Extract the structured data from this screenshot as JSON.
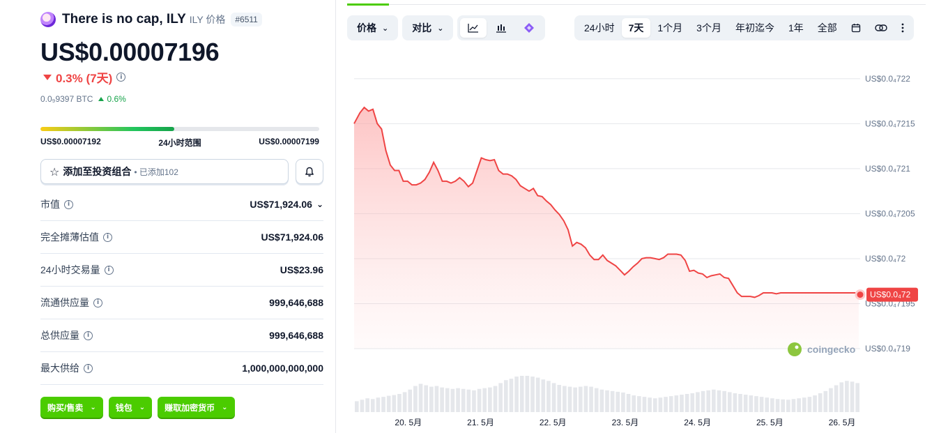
{
  "coin": {
    "name": "There is no cap, ILY",
    "symbol_label": "ILY 价格",
    "rank": "#6511",
    "price": "US$0.00007196",
    "change_7d": "0.3% (7天)",
    "btc_price": "0.0₉9397 BTC",
    "btc_change": "0.6%"
  },
  "range_24h": {
    "low": "US$0.00007192",
    "label": "24小时范围",
    "high": "US$0.00007199",
    "position": 0.48
  },
  "portfolio": {
    "label": "添加至投资组合",
    "added": "• 已添加102"
  },
  "stats": [
    {
      "label": "市值",
      "value": "US$71,924.06"
    },
    {
      "label": "完全摊薄估值",
      "value": "US$71,924.06"
    },
    {
      "label": "24小时交易量",
      "value": "US$23.96"
    },
    {
      "label": "流通供应量",
      "value": "999,646,688"
    },
    {
      "label": "总供应量",
      "value": "999,646,688"
    },
    {
      "label": "最大供给",
      "value": "1,000,000,000,000"
    }
  ],
  "actions": {
    "buy_sell": "购买/售卖",
    "wallet": "钱包",
    "earn": "赚取加密货币"
  },
  "toolbar": {
    "price_tab": "价格",
    "compare_tab": "对比",
    "chart_icons": [
      "line-chart-icon",
      "candlestick-icon",
      "tradingview-icon"
    ]
  },
  "time_ranges": {
    "items": [
      "24小时",
      "7天",
      "1个月",
      "3个月",
      "年初迄今",
      "1年",
      "全部"
    ],
    "active": "7天",
    "icons": [
      "calendar-icon",
      "link-icon",
      "more-icon"
    ]
  },
  "colors": {
    "line": "#ef4444",
    "area": "#fecaca",
    "accent_green": "#4bcc00"
  },
  "chart_data": {
    "type": "area",
    "y_tick_labels": [
      "US$0.0₄722",
      "US$0.0₄7215",
      "US$0.0₄721",
      "US$0.0₄7205",
      "US$0.0₄72",
      "US$0.0₄7195",
      "US$0.0₄719"
    ],
    "y_ticks": [
      7.22e-05,
      7.215e-05,
      7.21e-05,
      7.205e-05,
      7.2e-05,
      7.195e-05,
      7.19e-05
    ],
    "ylim": [
      7.19e-05,
      7.222e-05
    ],
    "x_tick_labels": [
      "20. 5月",
      "21. 5月",
      "22. 5月",
      "23. 5月",
      "24. 5月",
      "25. 5月",
      "26. 5月"
    ],
    "x_ticks": [
      0.75,
      1.75,
      2.75,
      3.75,
      4.75,
      5.75,
      6.75
    ],
    "xlim": [
      0,
      7
    ],
    "current_label": "US$0.0₄72",
    "current_value": 7.196e-05,
    "watermark": "coingecko",
    "grid": true,
    "series": [
      {
        "x": [
          0.0,
          0.08,
          0.14,
          0.2,
          0.26,
          0.32,
          0.38,
          0.44,
          0.5,
          0.56,
          0.62,
          0.68,
          0.74,
          0.8,
          0.86,
          0.92,
          0.98,
          1.04,
          1.1,
          1.16,
          1.22,
          1.28,
          1.34,
          1.4,
          1.46,
          1.52,
          1.58,
          1.64,
          1.7,
          1.76,
          1.82,
          1.88,
          1.94,
          2.0,
          2.06,
          2.12,
          2.18,
          2.24,
          2.3,
          2.36,
          2.42,
          2.48,
          2.54,
          2.6,
          2.66,
          2.72,
          2.78,
          2.84,
          2.9,
          2.96,
          3.02,
          3.08,
          3.14,
          3.2,
          3.26,
          3.32,
          3.38,
          3.44,
          3.5,
          3.56,
          3.62,
          3.68,
          3.74,
          3.8,
          3.86,
          3.92,
          3.98,
          4.04,
          4.1,
          4.16,
          4.22,
          4.28,
          4.34,
          4.4,
          4.46,
          4.52,
          4.58,
          4.64,
          4.7,
          4.76,
          4.82,
          4.88,
          4.94,
          5.0,
          5.06,
          5.12,
          5.18,
          5.24,
          5.3,
          5.36,
          5.42,
          5.48,
          5.54,
          5.6,
          5.66,
          5.72,
          5.78,
          5.84,
          5.9,
          5.96,
          6.02,
          6.08,
          6.14,
          6.2,
          6.26,
          6.32,
          6.38,
          6.44,
          6.5,
          6.56,
          6.62,
          6.68,
          6.74,
          6.8,
          6.86,
          6.92,
          6.98
        ],
        "values": [
          7.215e-05,
          7.2162e-05,
          7.2168e-05,
          7.2164e-05,
          7.2166e-05,
          7.215e-05,
          7.2144e-05,
          7.212e-05,
          7.2104e-05,
          7.2098e-05,
          7.2098e-05,
          7.2086e-05,
          7.2086e-05,
          7.2082e-05,
          7.2082e-05,
          7.2084e-05,
          7.2088e-05,
          7.2096e-05,
          7.2107e-05,
          7.2098e-05,
          7.2086e-05,
          7.2086e-05,
          7.2084e-05,
          7.2086e-05,
          7.209e-05,
          7.2086e-05,
          7.208e-05,
          7.2084e-05,
          7.2098e-05,
          7.2112e-05,
          7.211e-05,
          7.2109e-05,
          7.211e-05,
          7.2098e-05,
          7.2094e-05,
          7.2094e-05,
          7.2092e-05,
          7.2088e-05,
          7.2081e-05,
          7.2078e-05,
          7.2075e-05,
          7.2078e-05,
          7.207e-05,
          7.2069e-05,
          7.2064e-05,
          7.206e-05,
          7.2054e-05,
          7.2049e-05,
          7.2042e-05,
          7.2032e-05,
          7.2014e-05,
          7.2018e-05,
          7.2016e-05,
          7.2012e-05,
          7.2004e-05,
          7.1999e-05,
          7.1999e-05,
          7.2004e-05,
          7.1998e-05,
          7.1995e-05,
          7.1992e-05,
          7.1987e-05,
          7.1982e-05,
          7.1986e-05,
          7.1991e-05,
          7.1995e-05,
          7.2e-05,
          7.2001e-05,
          7.2001e-05,
          7.2e-05,
          7.1999e-05,
          7.2001e-05,
          7.2005e-05,
          7.2005e-05,
          7.2005e-05,
          7.2004e-05,
          7.1998e-05,
          7.1986e-05,
          7.1987e-05,
          7.1984e-05,
          7.1983e-05,
          7.1979e-05,
          7.1981e-05,
          7.1982e-05,
          7.1983e-05,
          7.1979e-05,
          7.1978e-05,
          7.197e-05,
          7.1962e-05,
          7.1958e-05,
          7.1958e-05,
          7.1958e-05,
          7.1957e-05,
          7.1959e-05,
          7.1962e-05,
          7.1962e-05,
          7.1962e-05,
          7.1961e-05,
          7.1962e-05,
          7.1962e-05,
          7.1962e-05,
          7.1962e-05,
          7.1962e-05,
          7.1962e-05,
          7.1962e-05,
          7.1962e-05,
          7.1962e-05,
          7.1962e-05,
          7.1962e-05,
          7.1962e-05,
          7.1962e-05,
          7.1962e-05,
          7.1962e-05,
          7.1962e-05,
          7.1962e-05,
          7.1962e-05,
          7.1962e-05
        ]
      }
    ],
    "volume": [
      0.3,
      0.34,
      0.38,
      0.36,
      0.4,
      0.42,
      0.45,
      0.47,
      0.5,
      0.55,
      0.62,
      0.72,
      0.78,
      0.74,
      0.7,
      0.72,
      0.68,
      0.66,
      0.64,
      0.66,
      0.64,
      0.62,
      0.6,
      0.64,
      0.66,
      0.68,
      0.72,
      0.8,
      0.88,
      0.92,
      0.98,
      1.0,
      1.0,
      0.98,
      0.95,
      0.9,
      0.86,
      0.8,
      0.75,
      0.72,
      0.7,
      0.68,
      0.7,
      0.72,
      0.7,
      0.66,
      0.62,
      0.6,
      0.58,
      0.56,
      0.54,
      0.5,
      0.46,
      0.44,
      0.42,
      0.4,
      0.38,
      0.4,
      0.42,
      0.44,
      0.46,
      0.48,
      0.5,
      0.52,
      0.55,
      0.58,
      0.6,
      0.62,
      0.6,
      0.58,
      0.55,
      0.52,
      0.5,
      0.48,
      0.46,
      0.44,
      0.42,
      0.4,
      0.38,
      0.36,
      0.35,
      0.34,
      0.36,
      0.38,
      0.4,
      0.42,
      0.46,
      0.52,
      0.58,
      0.66,
      0.74,
      0.82,
      0.86,
      0.84,
      0.8
    ]
  }
}
